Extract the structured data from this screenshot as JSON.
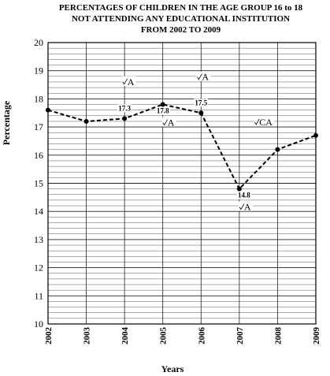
{
  "chart_data": {
    "type": "line",
    "title_lines": [
      "PERCENTAGES OF CHILDREN IN THE AGE GROUP 16 to 18",
      "NOT ATTENDING ANY EDUCATIONAL INSTITUTION",
      "FROM 2002 TO 2009"
    ],
    "xlabel": "Years",
    "ylabel": "Percentage",
    "x": [
      "2002",
      "2003",
      "2004",
      "2005",
      "2006",
      "2007",
      "2008",
      "2009"
    ],
    "values": [
      17.6,
      17.2,
      17.3,
      17.8,
      17.5,
      14.8,
      16.2,
      16.7
    ],
    "data_labels": [
      {
        "index": 2,
        "text": "17.3"
      },
      {
        "index": 3,
        "text": "17.8"
      },
      {
        "index": 4,
        "text": "17.5"
      },
      {
        "index": 5,
        "text": "14.8"
      }
    ],
    "yticks": [
      "10",
      "11",
      "12",
      "13",
      "14",
      "15",
      "16",
      "17",
      "18",
      "19",
      "20"
    ],
    "ylim": [
      10,
      20
    ],
    "grid": true,
    "line_style": "dashed",
    "annotations": [
      {
        "text": "A",
        "x": 2003.95,
        "y": 18.55
      },
      {
        "text": "A",
        "x": 2005.0,
        "y": 17.1
      },
      {
        "text": "A",
        "x": 2005.9,
        "y": 18.72
      },
      {
        "text": "CA",
        "x": 2007.4,
        "y": 17.12
      },
      {
        "text": "A",
        "x": 2007.0,
        "y": 14.1
      }
    ]
  }
}
